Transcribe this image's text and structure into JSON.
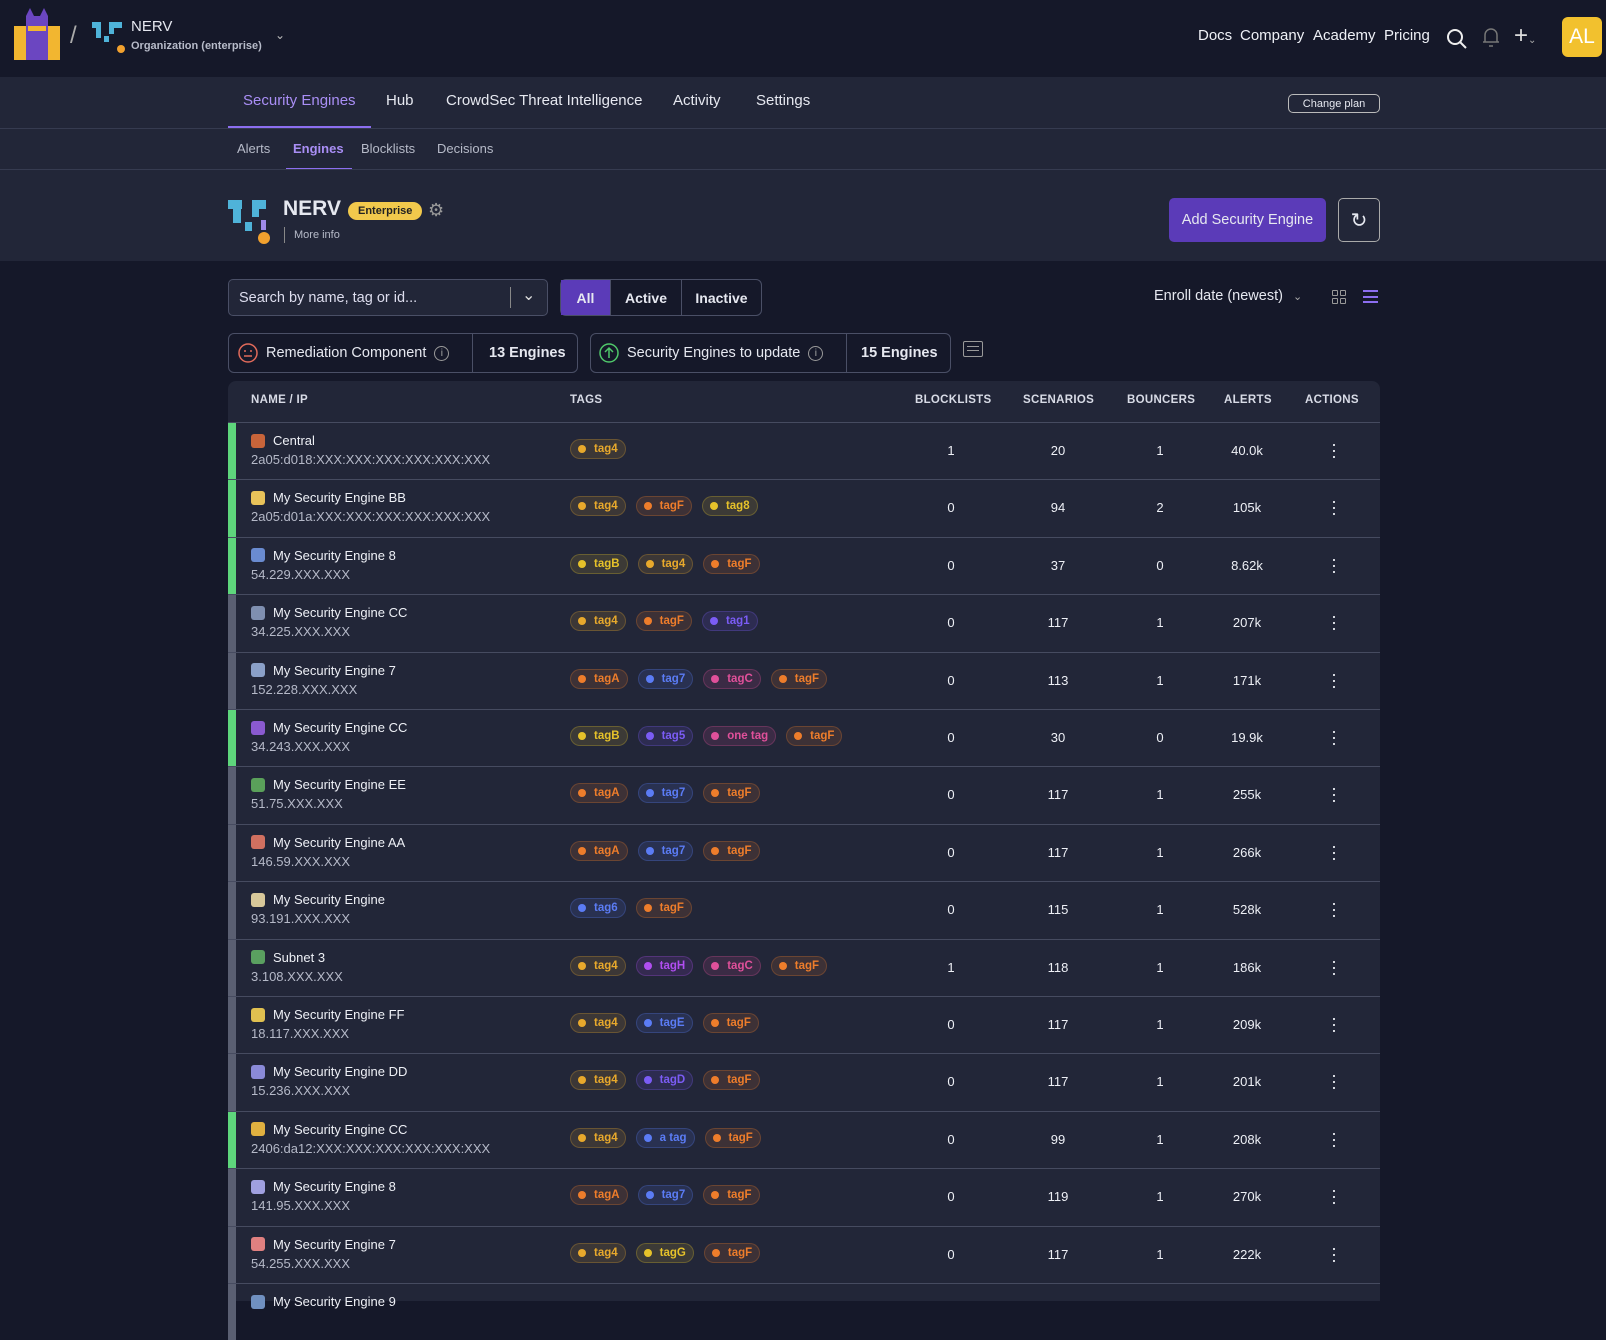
{
  "header": {
    "org_name": "NERV",
    "org_type": "Organization (enterprise)",
    "links": [
      "Docs",
      "Company",
      "Academy",
      "Pricing"
    ],
    "avatar_initials": "AL",
    "avatar_color": "#f2c12e"
  },
  "nav": {
    "tabs": [
      "Security Engines",
      "Hub",
      "CrowdSec Threat Intelligence",
      "Activity",
      "Settings"
    ],
    "active": "Security Engines",
    "change_plan": "Change plan"
  },
  "subnav": {
    "tabs": [
      "Alerts",
      "Engines",
      "Blocklists",
      "Decisions"
    ],
    "active": "Engines"
  },
  "org": {
    "name": "NERV",
    "badge": "Enterprise",
    "more_info": "More info",
    "add_button": "Add Security Engine"
  },
  "filters": {
    "search_placeholder": "Search by name, tag or id...",
    "status_options": [
      "All",
      "Active",
      "Inactive"
    ],
    "status_selected": "All",
    "sort": "Enroll date (newest)"
  },
  "summary": [
    {
      "label": "Remediation Component",
      "count": "13 Engines"
    },
    {
      "label": "Security Engines to update",
      "count": "15 Engines"
    }
  ],
  "table": {
    "columns": [
      "NAME / IP",
      "TAGS",
      "BLOCKLISTS",
      "SCENARIOS",
      "BOUNCERS",
      "ALERTS",
      "ACTIONS"
    ],
    "rows": [
      {
        "name": "Central",
        "ip": "2a05:d018:XXX:XXX:XXX:XXX:XXX:XXX",
        "active": true,
        "tags": [
          "tag4"
        ],
        "blocklists": "1",
        "scenarios": "20",
        "bouncers": "1",
        "alerts": "40.0k"
      },
      {
        "name": "My Security Engine BB",
        "ip": "2a05:d01a:XXX:XXX:XXX:XXX:XXX:XXX",
        "active": true,
        "tags": [
          "tag4",
          "tagF",
          "tag8"
        ],
        "blocklists": "0",
        "scenarios": "94",
        "bouncers": "2",
        "alerts": "105k"
      },
      {
        "name": "My Security Engine 8",
        "ip": "54.229.XXX.XXX",
        "active": true,
        "tags": [
          "tagB",
          "tag4",
          "tagF"
        ],
        "blocklists": "0",
        "scenarios": "37",
        "bouncers": "0",
        "alerts": "8.62k"
      },
      {
        "name": "My Security Engine CC",
        "ip": "34.225.XXX.XXX",
        "active": false,
        "tags": [
          "tag4",
          "tagF",
          "tag1"
        ],
        "blocklists": "0",
        "scenarios": "117",
        "bouncers": "1",
        "alerts": "207k"
      },
      {
        "name": "My Security Engine 7",
        "ip": "152.228.XXX.XXX",
        "active": false,
        "tags": [
          "tagA",
          "tag7",
          "tagC",
          "tagF"
        ],
        "blocklists": "0",
        "scenarios": "113",
        "bouncers": "1",
        "alerts": "171k"
      },
      {
        "name": "My Security Engine CC",
        "ip": "34.243.XXX.XXX",
        "active": true,
        "tags": [
          "tagB",
          "tag5",
          "one tag",
          "tagF"
        ],
        "blocklists": "0",
        "scenarios": "30",
        "bouncers": "0",
        "alerts": "19.9k"
      },
      {
        "name": "My Security Engine EE",
        "ip": "51.75.XXX.XXX",
        "active": false,
        "tags": [
          "tagA",
          "tag7",
          "tagF"
        ],
        "blocklists": "0",
        "scenarios": "117",
        "bouncers": "1",
        "alerts": "255k"
      },
      {
        "name": "My Security Engine AA",
        "ip": "146.59.XXX.XXX",
        "active": false,
        "tags": [
          "tagA",
          "tag7",
          "tagF"
        ],
        "blocklists": "0",
        "scenarios": "117",
        "bouncers": "1",
        "alerts": "266k"
      },
      {
        "name": "My Security Engine",
        "ip": "93.191.XXX.XXX",
        "active": false,
        "tags": [
          "tag6",
          "tagF"
        ],
        "blocklists": "0",
        "scenarios": "115",
        "bouncers": "1",
        "alerts": "528k"
      },
      {
        "name": "Subnet 3",
        "ip": "3.108.XXX.XXX",
        "active": false,
        "tags": [
          "tag4",
          "tagH",
          "tagC",
          "tagF"
        ],
        "blocklists": "1",
        "scenarios": "118",
        "bouncers": "1",
        "alerts": "186k"
      },
      {
        "name": "My Security Engine FF",
        "ip": "18.117.XXX.XXX",
        "active": false,
        "tags": [
          "tag4",
          "tagE",
          "tagF"
        ],
        "blocklists": "0",
        "scenarios": "117",
        "bouncers": "1",
        "alerts": "209k"
      },
      {
        "name": "My Security Engine DD",
        "ip": "15.236.XXX.XXX",
        "active": false,
        "tags": [
          "tag4",
          "tagD",
          "tagF"
        ],
        "blocklists": "0",
        "scenarios": "117",
        "bouncers": "1",
        "alerts": "201k"
      },
      {
        "name": "My Security Engine CC",
        "ip": "2406:da12:XXX:XXX:XXX:XXX:XXX:XXX",
        "active": true,
        "tags": [
          "tag4",
          "a tag",
          "tagF"
        ],
        "blocklists": "0",
        "scenarios": "99",
        "bouncers": "1",
        "alerts": "208k"
      },
      {
        "name": "My Security Engine 8",
        "ip": "141.95.XXX.XXX",
        "active": false,
        "tags": [
          "tagA",
          "tag7",
          "tagF"
        ],
        "blocklists": "0",
        "scenarios": "119",
        "bouncers": "1",
        "alerts": "270k"
      },
      {
        "name": "My Security Engine 7",
        "ip": "54.255.XXX.XXX",
        "active": false,
        "tags": [
          "tag4",
          "tagG",
          "tagF"
        ],
        "blocklists": "0",
        "scenarios": "117",
        "bouncers": "1",
        "alerts": "222k"
      },
      {
        "name": "My Security Engine 9",
        "ip": "",
        "active": false,
        "tags": [],
        "blocklists": "",
        "scenarios": "",
        "bouncers": "",
        "alerts": ""
      }
    ]
  },
  "colors": {
    "accent": "#5b3bb8",
    "active": "#5ed67c",
    "inactive": "#5a5f72",
    "tag_colors": {
      "tag4": "#e8a92c",
      "tagF": "#ee7d2b",
      "tagA": "#ee7d2b",
      "tag8": "#e6c22a",
      "tagB": "#e6c22a",
      "tagG": "#e6c22a",
      "tag1": "#7b5cf5",
      "tag5": "#7b5cf5",
      "tagD": "#7b5cf5",
      "tag7": "#5b7cf5",
      "tag6": "#5b7cf5",
      "tagE": "#5b7cf5",
      "a tag": "#5b7cf5",
      "tagC": "#e0509a",
      "one tag": "#e0509a",
      "tagH": "#b04ef0"
    }
  }
}
